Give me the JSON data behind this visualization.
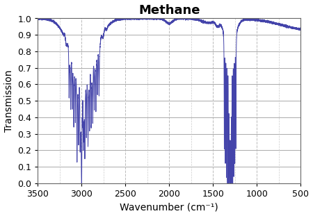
{
  "title": "Methane",
  "xlabel": "Wavenumber (cm⁻¹)",
  "ylabel": "Transmission",
  "xlim": [
    3500,
    500
  ],
  "ylim": [
    0.0,
    1.0
  ],
  "xticks": [
    3500,
    3000,
    2500,
    2000,
    1500,
    1000,
    500
  ],
  "yticks": [
    0.0,
    0.1,
    0.2,
    0.3,
    0.4,
    0.5,
    0.6,
    0.7,
    0.8,
    0.9,
    1.0
  ],
  "line_color": "#4444aa",
  "background_color": "#ffffff",
  "grid_color_h": "#aaaaaa",
  "grid_color_v": "#bbbbbb",
  "title_fontsize": 13,
  "label_fontsize": 10,
  "tick_fontsize": 9
}
